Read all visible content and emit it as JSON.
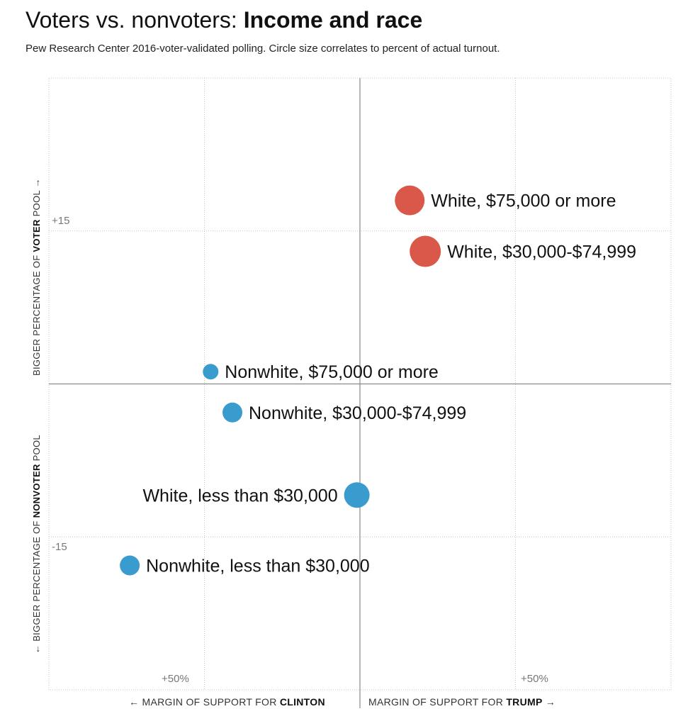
{
  "header": {
    "title_light": "Voters vs. nonvoters: ",
    "title_bold": "Income and race",
    "subtitle": "Pew Research Center 2016-voter-validated polling. Circle size correlates to percent of actual turnout."
  },
  "axes": {
    "y_up_prefix": "BIGGER PERCENTAGE OF ",
    "y_up_bold": "VOTER",
    "y_up_suffix": " POOL →",
    "y_down_prefix": "← BIGGER PERCENTAGE OF ",
    "y_down_bold": "NONVOTER",
    "y_down_suffix": " POOL",
    "x_left_prefix": "← MARGIN OF SUPPORT FOR ",
    "x_left_bold": "CLINTON",
    "x_right_prefix": "MARGIN OF SUPPORT FOR ",
    "x_right_bold": "TRUMP",
    "x_right_suffix": " →",
    "y_tick_top": "+15",
    "y_tick_bottom": "-15",
    "x_tick_left": "+50%",
    "x_tick_right": "+50%"
  },
  "colors": {
    "trump": "#d9584a",
    "clinton": "#3a9bce",
    "grid": "#c8c8c8",
    "axis": "#8a8a8a"
  },
  "chart_data": {
    "type": "scatter",
    "title": "Voters vs. nonvoters: Income and race",
    "subtitle": "Pew Research Center 2016-voter-validated polling. Circle size correlates to percent of actual turnout.",
    "xlabel": "← MARGIN OF SUPPORT FOR CLINTON | MARGIN OF SUPPORT FOR TRUMP →",
    "ylabel": "← BIGGER PERCENTAGE OF NONVOTER POOL | BIGGER PERCENTAGE OF VOTER POOL →",
    "xlim": [
      -100,
      100
    ],
    "ylim": [
      -30,
      30
    ],
    "x_ticks": [
      -50,
      50
    ],
    "y_ticks": [
      -15,
      15
    ],
    "grid": true,
    "points": [
      {
        "label": "White, $75,000 or more",
        "x": 16,
        "y": 18,
        "size": 21,
        "party": "trump",
        "label_side": "right"
      },
      {
        "label": "White, $30,000-$74,999",
        "x": 21,
        "y": 13,
        "size": 22,
        "party": "trump",
        "label_side": "right"
      },
      {
        "label": "Nonwhite, $75,000 or more",
        "x": -48,
        "y": 1.2,
        "size": 11,
        "party": "clinton",
        "label_side": "right"
      },
      {
        "label": "Nonwhite, $30,000-$74,999",
        "x": -41,
        "y": -2.8,
        "size": 14,
        "party": "clinton",
        "label_side": "right"
      },
      {
        "label": "White, less than $30,000",
        "x": -1,
        "y": -10.9,
        "size": 18,
        "party": "clinton",
        "label_side": "left"
      },
      {
        "label": "Nonwhite, less than $30,000",
        "x": -74,
        "y": -17.8,
        "size": 14,
        "party": "clinton",
        "label_side": "right"
      }
    ]
  }
}
